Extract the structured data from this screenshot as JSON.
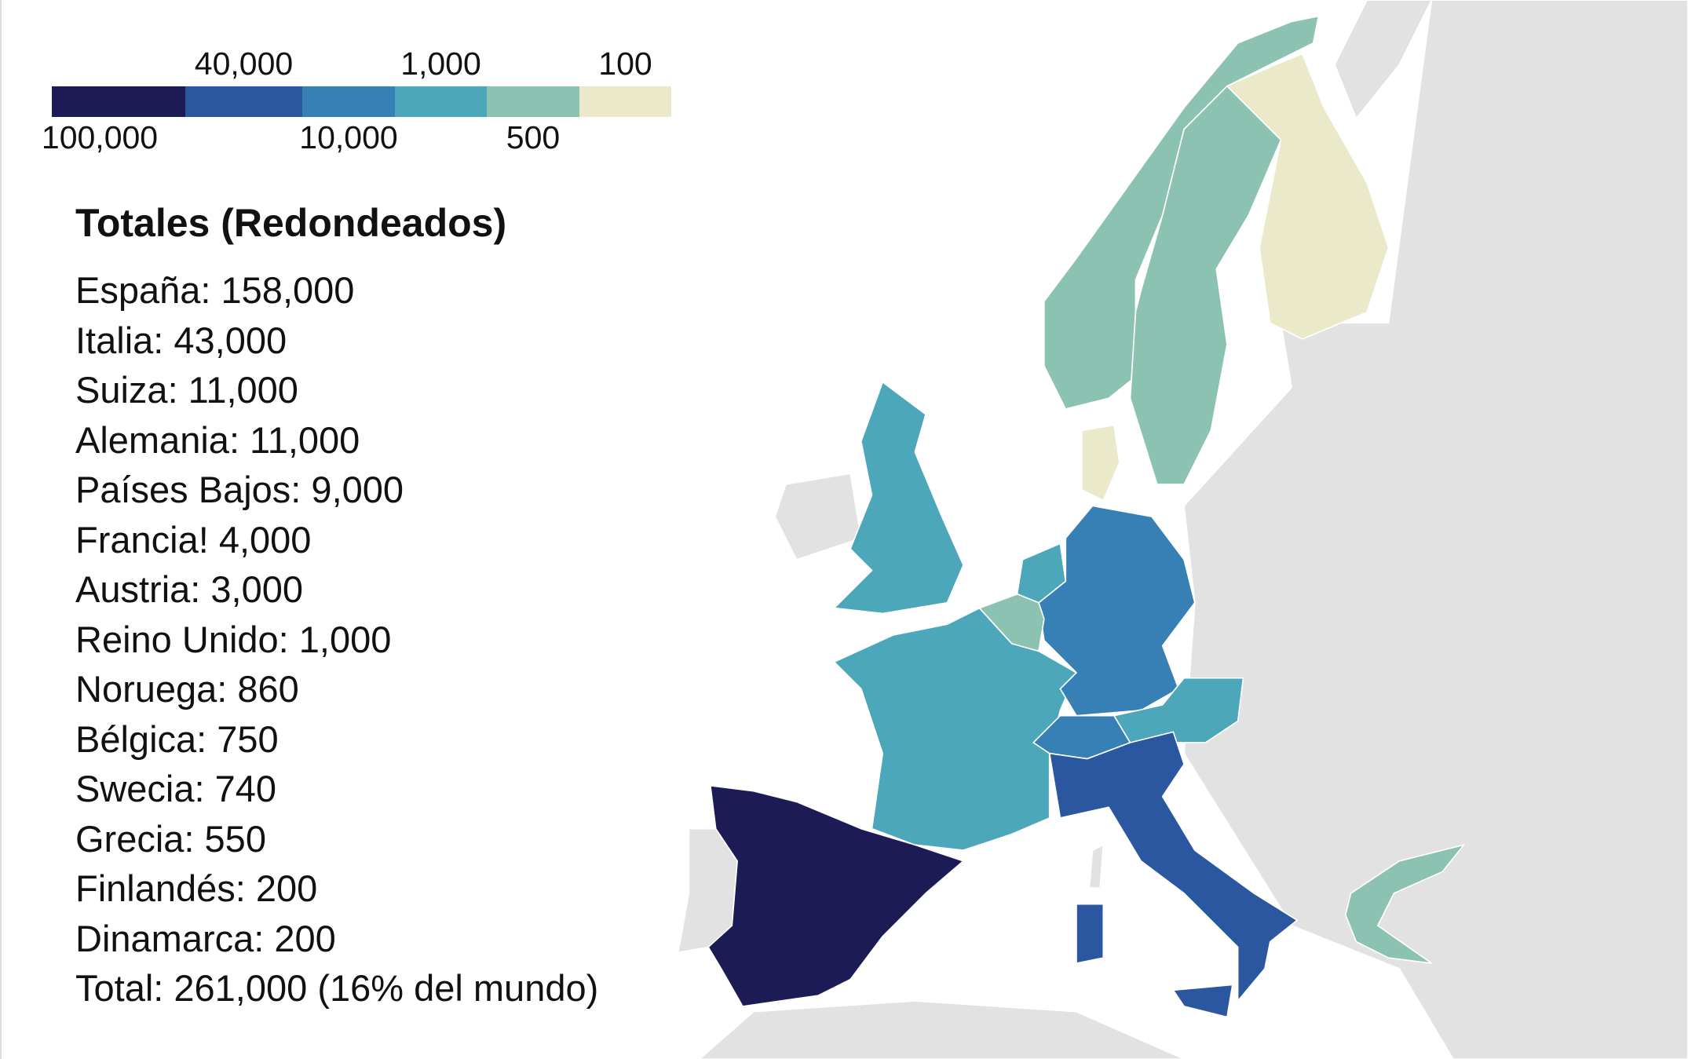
{
  "legend": {
    "labels": [
      "100,000",
      "40,000",
      "10,000",
      "1,000",
      "500",
      "100"
    ],
    "colors": [
      "#1d1b55",
      "#2b56a0",
      "#3780b5",
      "#4ba7b9",
      "#8cc2b2",
      "#eaeacb"
    ]
  },
  "panel": {
    "title": "Totales (Redondeados)",
    "lines": [
      "España: 158,000",
      "Italia: 43,000",
      "Suiza: 11,000",
      "Alemania: 11,000",
      "Países Bajos: 9,000",
      "Francia! 4,000",
      "Austria: 3,000",
      "Reino Unido: 1,000",
      "Noruega: 860",
      "Bélgica: 750",
      "Swecia: 740",
      "Grecia: 550",
      "Finlandés: 200",
      "Dinamarca: 200",
      "Total: 261,000 (16% del mundo)"
    ]
  }
}
